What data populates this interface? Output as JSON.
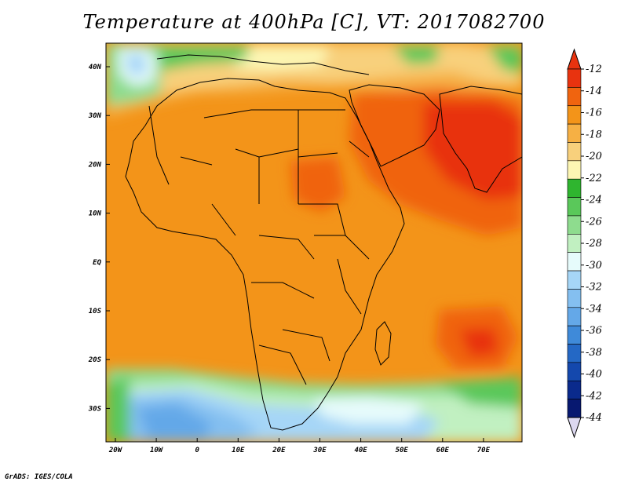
{
  "title": "Temperature at 400hPa [C], VT: 2017082700",
  "credit": "GrADS: IGES/COLA",
  "map": {
    "type": "filled-contour-map",
    "variable": "Temperature at 400hPa",
    "units": "C",
    "valid_time": "2017082700",
    "lon_labels": [
      "20W",
      "10W",
      "0",
      "10E",
      "20E",
      "30E",
      "40E",
      "50E",
      "60E",
      "70E"
    ],
    "lat_labels": [
      "40N",
      "30N",
      "20N",
      "10N",
      "EQ",
      "10S",
      "20S",
      "30S"
    ]
  },
  "colorbar": {
    "labels": [
      "-12",
      "-14",
      "-16",
      "-18",
      "-20",
      "-22",
      "-24",
      "-26",
      "-28",
      "-30",
      "-32",
      "-34",
      "-36",
      "-38",
      "-40",
      "-42",
      "-44"
    ],
    "colors": [
      "#e8330f",
      "#f0640f",
      "#f39419",
      "#f6b044",
      "#f8d07c",
      "#fdf6b3",
      "#2fb52f",
      "#5ac85a",
      "#8edc8e",
      "#c1f0c1",
      "#e6fbfb",
      "#a6d6f7",
      "#84bff0",
      "#64a8e8",
      "#3f8ad9",
      "#2468c5",
      "#1448ad",
      "#0a2a8c",
      "#071870"
    ],
    "over_color": "#e8330f",
    "under_color": "#dcd8f0"
  }
}
